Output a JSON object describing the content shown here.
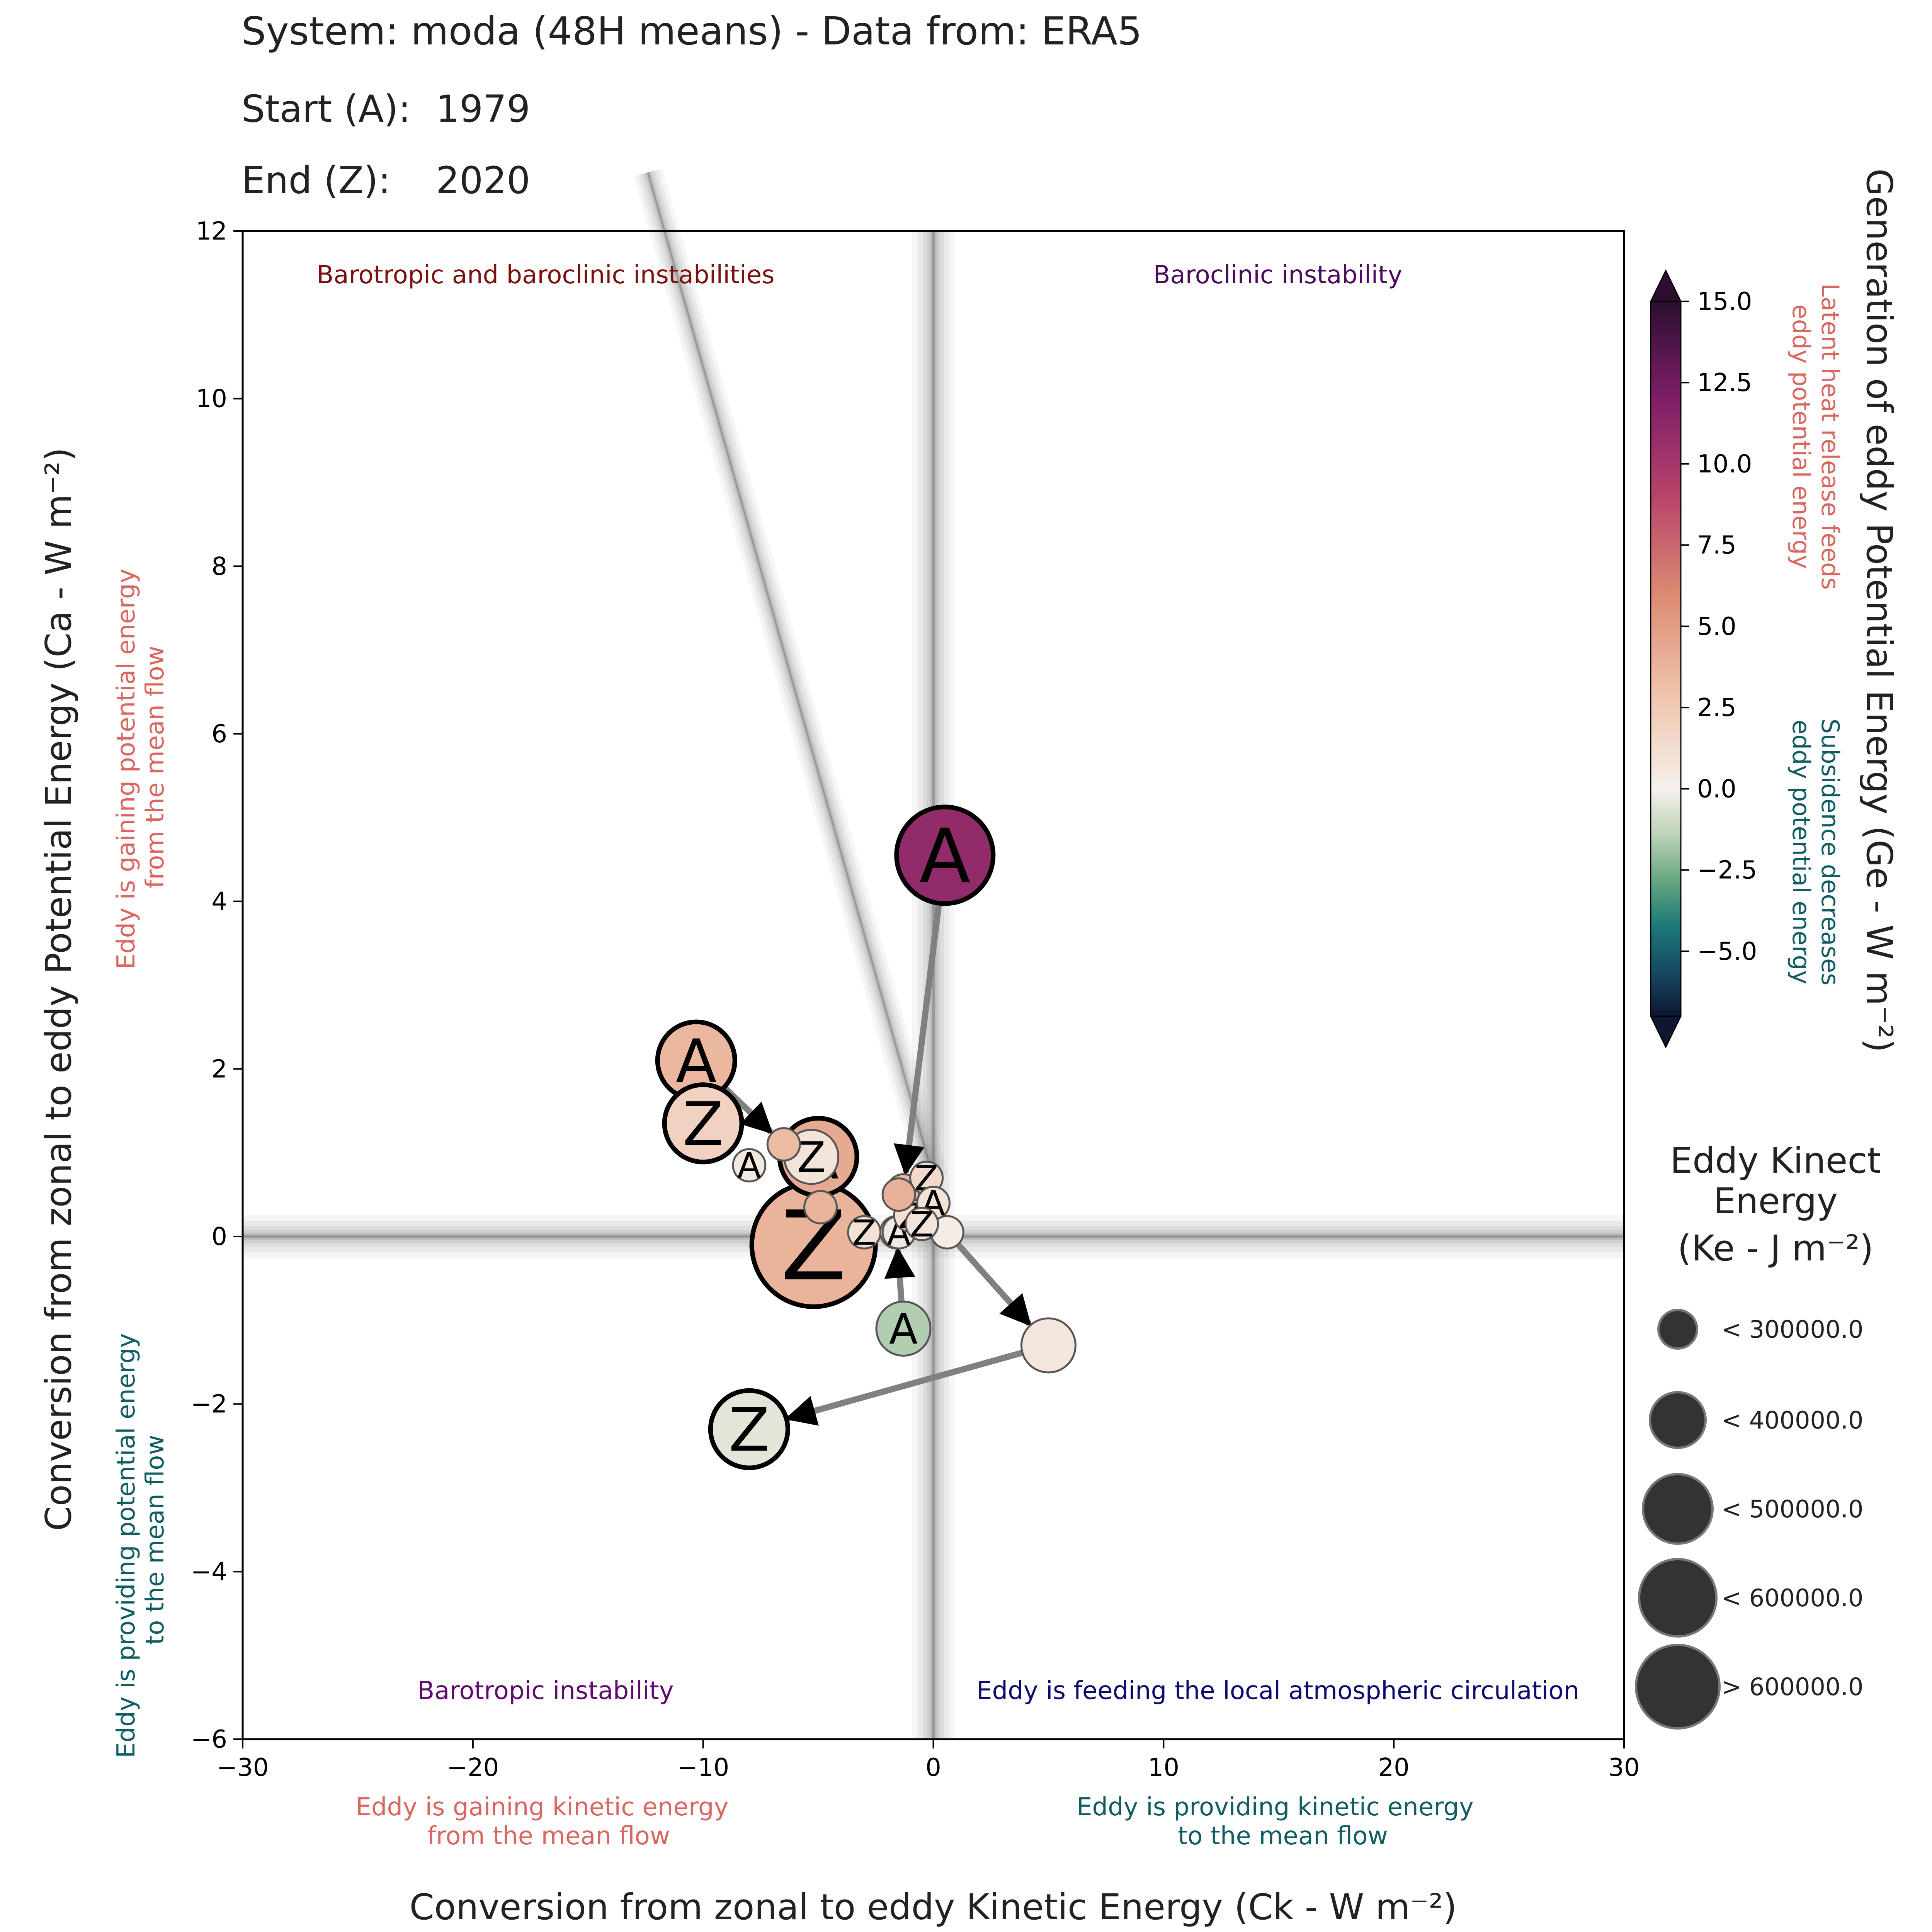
{
  "header": {
    "system_line": "System: moda (48H means) - Data from: ERA5",
    "start_label": "Start (A):",
    "start_value": "1979",
    "end_label": "End (Z):",
    "end_value": "2020"
  },
  "chart_data": {
    "type": "scatter",
    "xlabel": "Conversion from zonal to eddy Kinetic Energy (Ck -  W m⁻²)",
    "ylabel": "Conversion from zonal to eddy Potential Energy (Ca -  W m⁻²)",
    "xlim": [
      -30,
      30
    ],
    "ylim": [
      -6,
      12
    ],
    "xticks": [
      -30,
      -20,
      -10,
      0,
      10,
      20,
      30
    ],
    "yticks": [
      -6,
      -4,
      -2,
      0,
      2,
      4,
      6,
      8,
      10,
      12
    ],
    "xticklabels": [
      "−30",
      "−20",
      "−10",
      "0",
      "10",
      "20",
      "30"
    ],
    "yticklabels": [
      "−6",
      "−4",
      "−2",
      "0",
      "2",
      "4",
      "6",
      "8",
      "10",
      "12"
    ],
    "grid": false,
    "quadrant_labels": {
      "top_left": "Barotropic and baroclinic instabilities",
      "top_right": "Baroclinic instability",
      "bottom_left": "Barotropic instability",
      "bottom_right": "Eddy is feeding the local atmospheric circulation"
    },
    "axis_annotations": {
      "x_negative": [
        "Eddy is gaining kinetic energy",
        "from the mean flow"
      ],
      "x_positive": [
        "Eddy is providing kinetic energy",
        "to the mean flow"
      ],
      "y_positive": [
        "Eddy is gaining potential energy",
        "from the mean flow"
      ],
      "y_negative": [
        "Eddy is providing potential energy",
        "to the mean flow"
      ]
    },
    "colorbar": {
      "title": "Generation of eddy Potential Energy (Ge -  W m⁻²)",
      "range": [
        -7,
        15
      ],
      "ticks": [
        15.0,
        12.5,
        10.0,
        7.5,
        5.0,
        2.5,
        0.0,
        -2.5,
        -5.0
      ],
      "ticklabels": [
        "15.0",
        "12.5",
        "10.0",
        "7.5",
        "5.0",
        "2.5",
        "0.0",
        "−2.5",
        "−5.0"
      ],
      "positive_note": [
        "Latent heat release feeds",
        "eddy potential energy"
      ],
      "negative_note": [
        "Subsidence decreases",
        "eddy potential energy"
      ],
      "colormap_stops": [
        "#0e1631",
        "#174a63",
        "#1d7a78",
        "#68a781",
        "#bed3b8",
        "#f5f0eb",
        "#efc3aa",
        "#db8a73",
        "#b8446a",
        "#7e1e68",
        "#2b0f2e"
      ]
    },
    "size_legend": {
      "title": [
        "Eddy Kinect",
        "Energy",
        "(Ke -  J m⁻²)"
      ],
      "entries": [
        "< 300000.0",
        "< 400000.0",
        "< 500000.0",
        "< 600000.0",
        "> 600000.0"
      ],
      "size_levels": [
        1,
        2,
        3,
        4,
        5
      ]
    },
    "trajectories": [
      {
        "points": [
          {
            "ck": 0.5,
            "ca": 4.55,
            "ge": 11.0,
            "ke_level": 4,
            "mark": "A"
          },
          {
            "ck": -1.3,
            "ca": 0.55,
            "ge": 3.5,
            "ke_level": 1,
            "mark": ""
          }
        ]
      },
      {
        "points": [
          {
            "ck": -10.3,
            "ca": 2.1,
            "ge": 3.6,
            "ke_level": 3,
            "mark": "A"
          },
          {
            "ck": -6.5,
            "ca": 1.1,
            "ge": 3.4,
            "ke_level": 1,
            "mark": ""
          }
        ]
      },
      {
        "points": [
          {
            "ck": -5.0,
            "ca": 0.95,
            "ge": 4.3,
            "ke_level": 3,
            "mark": "A"
          },
          {
            "ck": -4.9,
            "ca": 0.35,
            "ge": 3.8,
            "ke_level": 1,
            "mark": ""
          },
          {
            "ck": -5.2,
            "ca": -0.1,
            "ge": 3.8,
            "ke_level": 5,
            "mark": "Z"
          }
        ]
      },
      {
        "points": [
          {
            "ck": -1.3,
            "ca": -1.1,
            "ge": -1.6,
            "ke_level": 2,
            "mark": "A"
          },
          {
            "ck": -1.6,
            "ca": 0.05,
            "ge": 0.5,
            "ke_level": 1,
            "mark": ""
          }
        ]
      },
      {
        "points": [
          {
            "ck": 0.6,
            "ca": 0.05,
            "ge": 0.3,
            "ke_level": 1,
            "mark": ""
          },
          {
            "ck": 5.0,
            "ca": -1.3,
            "ge": 0.7,
            "ke_level": 2,
            "mark": ""
          },
          {
            "ck": -8.0,
            "ca": -2.3,
            "ge": -0.5,
            "ke_level": 3,
            "mark": "Z"
          }
        ]
      }
    ],
    "points": [
      {
        "ck": -10.0,
        "ca": 1.35,
        "ge": 2.0,
        "ke_level": 3,
        "mark": "Z"
      },
      {
        "ck": -8.0,
        "ca": 0.85,
        "ge": 0.6,
        "ke_level": 1,
        "mark": "A"
      },
      {
        "ck": -5.3,
        "ca": 0.95,
        "ge": 0.8,
        "ke_level": 2,
        "mark": "Z"
      },
      {
        "ck": -3.0,
        "ca": 0.05,
        "ge": 1.0,
        "ke_level": 1,
        "mark": "Z"
      },
      {
        "ck": -1.5,
        "ca": 0.05,
        "ge": 0.5,
        "ke_level": 1,
        "mark": "A"
      },
      {
        "ck": -0.3,
        "ca": 0.7,
        "ge": 1.5,
        "ke_level": 1,
        "mark": "Z"
      },
      {
        "ck": -1.0,
        "ca": 0.25,
        "ge": 1.2,
        "ke_level": 1,
        "mark": "Z"
      },
      {
        "ck": 0.0,
        "ca": 0.4,
        "ge": 1.0,
        "ke_level": 1,
        "mark": "A"
      },
      {
        "ck": -1.5,
        "ca": 0.5,
        "ge": 4.0,
        "ke_level": 1,
        "mark": ""
      },
      {
        "ck": -0.5,
        "ca": 0.15,
        "ge": 0.8,
        "ke_level": 1,
        "mark": "Z"
      }
    ]
  }
}
